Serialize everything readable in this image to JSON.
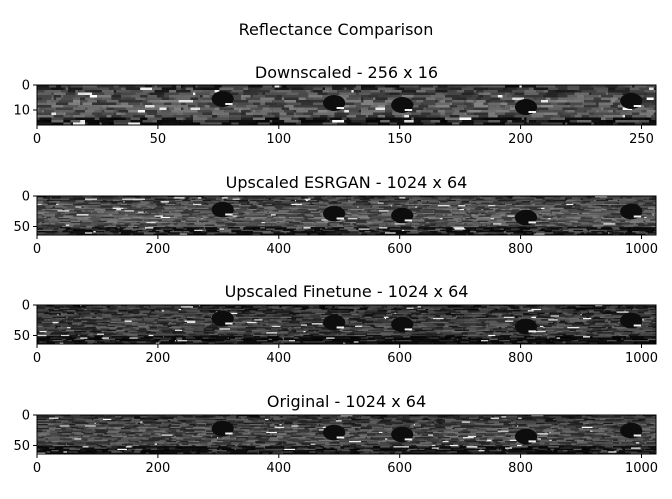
{
  "figure": {
    "suptitle": "Reflectance Comparison"
  },
  "chart_data": [
    {
      "type": "heatmap",
      "title": "Downscaled - 256 x 16",
      "width": 256,
      "height": 16,
      "xlim": [
        0,
        256
      ],
      "ylim": [
        16,
        0
      ],
      "x_ticks": [
        0,
        50,
        100,
        150,
        200,
        250
      ],
      "y_ticks": [
        0,
        10
      ],
      "colormap": "gray"
    },
    {
      "type": "heatmap",
      "title": "Upscaled ESRGAN - 1024 x 64",
      "width": 1024,
      "height": 64,
      "xlim": [
        0,
        1024
      ],
      "ylim": [
        64,
        0
      ],
      "x_ticks": [
        0,
        200,
        400,
        600,
        800,
        1000
      ],
      "y_ticks": [
        0,
        50
      ],
      "colormap": "gray"
    },
    {
      "type": "heatmap",
      "title": "Upscaled Finetune - 1024 x 64",
      "width": 1024,
      "height": 64,
      "xlim": [
        0,
        1024
      ],
      "ylim": [
        64,
        0
      ],
      "x_ticks": [
        0,
        200,
        400,
        600,
        800,
        1000
      ],
      "y_ticks": [
        0,
        50
      ],
      "colormap": "gray"
    },
    {
      "type": "heatmap",
      "title": "Original - 1024 x 64",
      "width": 1024,
      "height": 64,
      "xlim": [
        0,
        1024
      ],
      "ylim": [
        64,
        0
      ],
      "x_ticks": [
        0,
        200,
        400,
        600,
        800,
        1000
      ],
      "y_ticks": [
        0,
        50
      ],
      "colormap": "gray"
    }
  ]
}
